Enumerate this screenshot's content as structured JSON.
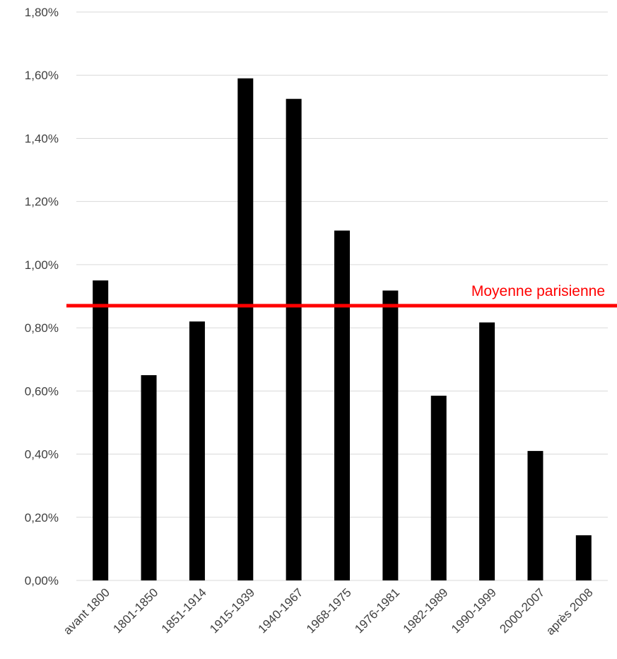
{
  "chart_data": {
    "type": "bar",
    "title": "",
    "xlabel": "",
    "ylabel": "",
    "categories": [
      "avant 1800",
      "1801-1850",
      "1851-1914",
      "1915-1939",
      "1940-1967",
      "1968-1975",
      "1976-1981",
      "1982-1989",
      "1990-1999",
      "2000-2007",
      "après 2008"
    ],
    "values": [
      0.95,
      0.65,
      0.82,
      1.59,
      1.525,
      1.108,
      0.918,
      0.585,
      0.817,
      0.41,
      0.143
    ],
    "value_unit": "%",
    "ylim": [
      0,
      1.8
    ],
    "yticks": [
      0,
      0.2,
      0.4,
      0.6,
      0.8,
      1.0,
      1.2,
      1.4,
      1.6,
      1.8
    ],
    "ytick_labels": [
      "0,00%",
      "0,20%",
      "0,40%",
      "0,60%",
      "0,80%",
      "1,00%",
      "1,20%",
      "1,40%",
      "1,60%",
      "1,80%"
    ],
    "grid": true,
    "legend": "none",
    "bar_color": "#000000",
    "grid_color": "#d9d9d9",
    "reference_line": {
      "label": "Moyenne parisienne",
      "value": 0.87,
      "color": "#ff0000"
    }
  }
}
